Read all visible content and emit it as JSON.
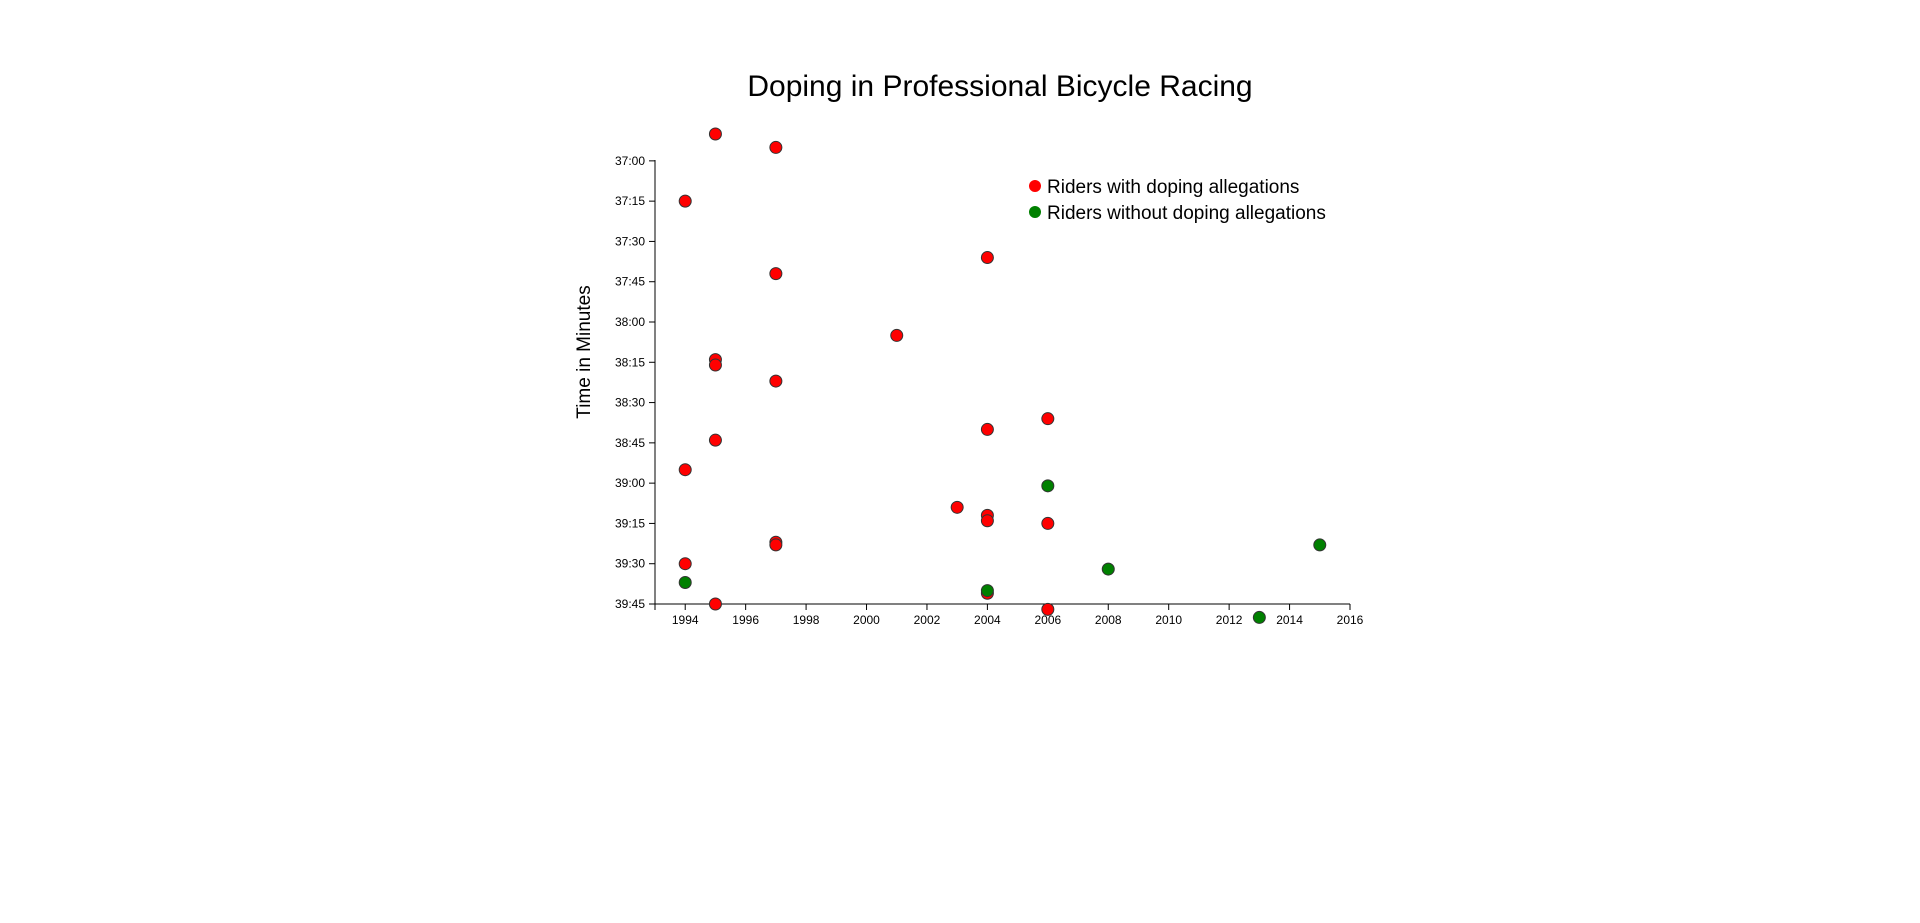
{
  "chart_data": {
    "type": "scatter",
    "title": "Doping in Professional Bicycle Racing",
    "ylabel": "Time in Minutes",
    "xlabel": "",
    "xlim": [
      1993,
      2016
    ],
    "ylim": [
      "36:50",
      "39:45"
    ],
    "x_ticks": [
      "1994",
      "1996",
      "1998",
      "2000",
      "2002",
      "2004",
      "2006",
      "2008",
      "2010",
      "2012",
      "2014",
      "2016"
    ],
    "y_ticks": [
      "37:00",
      "37:15",
      "37:30",
      "37:45",
      "38:00",
      "38:15",
      "38:30",
      "38:45",
      "39:00",
      "39:15",
      "39:30",
      "39:45"
    ],
    "legend_position": "top-right",
    "series": [
      {
        "name": "Riders with doping allegations",
        "color": "#ff0000",
        "points": [
          {
            "x": 1995,
            "y": "36:50"
          },
          {
            "x": 1997,
            "y": "36:55"
          },
          {
            "x": 1994,
            "y": "37:15"
          },
          {
            "x": 2004,
            "y": "37:36"
          },
          {
            "x": 1997,
            "y": "37:42"
          },
          {
            "x": 2001,
            "y": "38:05"
          },
          {
            "x": 1995,
            "y": "38:14"
          },
          {
            "x": 1995,
            "y": "38:16"
          },
          {
            "x": 1997,
            "y": "38:22"
          },
          {
            "x": 2006,
            "y": "38:36"
          },
          {
            "x": 2004,
            "y": "38:40"
          },
          {
            "x": 1995,
            "y": "38:44"
          },
          {
            "x": 1994,
            "y": "38:55"
          },
          {
            "x": 2003,
            "y": "39:09"
          },
          {
            "x": 2004,
            "y": "39:12"
          },
          {
            "x": 2004,
            "y": "39:14"
          },
          {
            "x": 2006,
            "y": "39:15"
          },
          {
            "x": 1997,
            "y": "39:22"
          },
          {
            "x": 1997,
            "y": "39:23"
          },
          {
            "x": 1994,
            "y": "39:30"
          },
          {
            "x": 2004,
            "y": "39:41"
          },
          {
            "x": 1995,
            "y": "39:45"
          },
          {
            "x": 2006,
            "y": "39:47"
          }
        ]
      },
      {
        "name": "Riders without doping allegations",
        "color": "#008000",
        "points": [
          {
            "x": 2006,
            "y": "39:01"
          },
          {
            "x": 2015,
            "y": "39:23"
          },
          {
            "x": 2008,
            "y": "39:32"
          },
          {
            "x": 1994,
            "y": "39:37"
          },
          {
            "x": 2004,
            "y": "39:40"
          },
          {
            "x": 2013,
            "y": "39:50"
          }
        ]
      }
    ]
  }
}
